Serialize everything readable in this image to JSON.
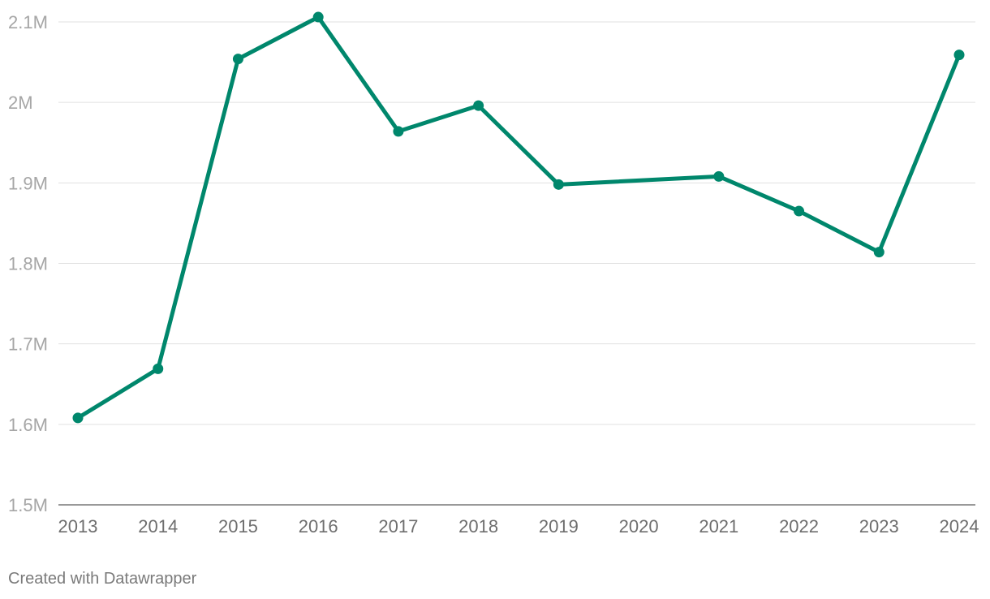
{
  "chart_data": {
    "type": "line",
    "x": [
      "2013",
      "2014",
      "2015",
      "2016",
      "2017",
      "2018",
      "2019",
      "2020",
      "2021",
      "2022",
      "2023",
      "2024"
    ],
    "series": [
      {
        "values": [
          1608000,
          1669000,
          2054000,
          2106000,
          1964000,
          1996000,
          1898000,
          null,
          1908000,
          1865000,
          1814000,
          2059000
        ],
        "color": "#00876c"
      }
    ],
    "yticks": [
      1500000,
      1600000,
      1700000,
      1800000,
      1900000,
      2000000,
      2100000
    ],
    "ytick_labels": [
      "1.5M",
      "1.6M",
      "1.7M",
      "1.8M",
      "1.9M",
      "2M",
      "2.1M"
    ],
    "ylim": [
      1500000,
      2100000
    ],
    "title": "",
    "xlabel": "",
    "ylabel": "",
    "grid": true
  },
  "footer": {
    "credit": "Created with Datawrapper"
  }
}
